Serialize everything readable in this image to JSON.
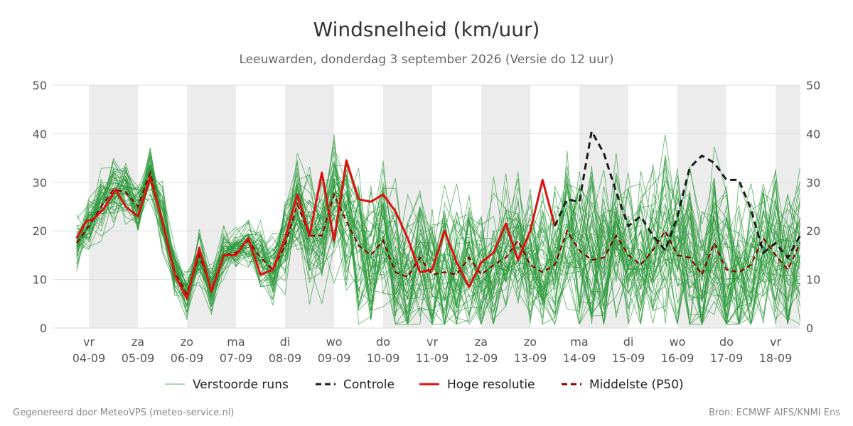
{
  "title": "Windsnelheid (km/uur)",
  "subtitle": "Leeuwarden, donderdag  3 september 2026 (Versie do 12 uur)",
  "footer_left": "Gegenereerd door MeteoVPS (meteo-service.nl)",
  "footer_right": "Bron: ECMWF AIFS/KNMI Ens",
  "colors": {
    "ensemble": "#2e9a3c",
    "controle": "#1a1a1a",
    "hoge_resolutie": "#e01010",
    "p50": "#8b0000",
    "shade": "#ececec",
    "grid": "#dddddd"
  },
  "legend": [
    {
      "key": "ensemble",
      "label": "Verstoorde runs",
      "style": "thin"
    },
    {
      "key": "controle",
      "label": "Controle",
      "style": "dashed"
    },
    {
      "key": "hoge_resolutie",
      "label": "Hoge resolutie",
      "style": "solid"
    },
    {
      "key": "p50",
      "label": "Middelste (P50)",
      "style": "dashed"
    }
  ],
  "chart_data": {
    "type": "line",
    "title": "Windsnelheid (km/uur)",
    "ylim": [
      0,
      50
    ],
    "yticks": [
      0,
      10,
      20,
      30,
      40,
      50
    ],
    "xlim": [
      -0.25,
      14.5
    ],
    "grid": "horizontal",
    "legend_position": "bottom",
    "day_labels": [
      {
        "dow": "vr",
        "date": "04-09"
      },
      {
        "dow": "za",
        "date": "05-09"
      },
      {
        "dow": "zo",
        "date": "06-09"
      },
      {
        "dow": "ma",
        "date": "07-09"
      },
      {
        "dow": "di",
        "date": "08-09"
      },
      {
        "dow": "wo",
        "date": "09-09"
      },
      {
        "dow": "do",
        "date": "10-09"
      },
      {
        "dow": "vr",
        "date": "11-09"
      },
      {
        "dow": "za",
        "date": "12-09"
      },
      {
        "dow": "zo",
        "date": "13-09"
      },
      {
        "dow": "ma",
        "date": "14-09"
      },
      {
        "dow": "di",
        "date": "15-09"
      },
      {
        "dow": "wo",
        "date": "16-09"
      },
      {
        "dow": "do",
        "date": "17-09"
      },
      {
        "dow": "vr",
        "date": "18-09"
      }
    ],
    "shaded_days": [
      0,
      2,
      4,
      6,
      8,
      10,
      12,
      14
    ],
    "hoge_resolutie": {
      "x": [
        -0.25,
        -0.05,
        0.1,
        0.3,
        0.55,
        0.75,
        1.0,
        1.25,
        1.5,
        1.75,
        2.0,
        2.25,
        2.5,
        2.75,
        3.0,
        3.25,
        3.5,
        3.75,
        4.0,
        4.25,
        4.5,
        4.75,
        5.0,
        5.25,
        5.5,
        5.75,
        6.0,
        6.25,
        6.5,
        6.75,
        7.0,
        7.25,
        7.5,
        7.75,
        8.0,
        8.25,
        8.5,
        8.75,
        9.0,
        9.25,
        9.5
      ],
      "y": [
        18.5,
        22,
        22.5,
        24.5,
        28.5,
        25,
        23,
        31,
        22,
        11,
        6,
        16.5,
        7.5,
        15,
        15,
        18.5,
        11,
        12,
        18.5,
        27.5,
        19,
        32,
        18,
        34.5,
        26.5,
        26,
        27.5,
        24,
        18.5,
        11.5,
        12,
        20,
        13.5,
        8.5,
        13.5,
        15.5,
        21.5,
        14,
        20,
        30.5,
        21
      ]
    },
    "controle": {
      "x": [
        9.5,
        9.75,
        10.0,
        10.25,
        10.5,
        10.75,
        11.0,
        11.25,
        11.5,
        11.75,
        12.0,
        12.25,
        12.5,
        12.75,
        13.0,
        13.25,
        13.5,
        13.75,
        14.0,
        14.25,
        14.5
      ],
      "y": [
        21,
        26.5,
        26,
        40.5,
        36,
        28,
        21,
        23,
        19,
        16,
        23,
        33,
        35.5,
        34,
        30.5,
        30.5,
        24.5,
        15.5,
        17.5,
        14.5,
        19
      ]
    },
    "p50": {
      "x": [
        -0.25,
        0.0,
        0.25,
        0.5,
        0.75,
        1.0,
        1.25,
        1.5,
        1.75,
        2.0,
        2.25,
        2.5,
        2.75,
        3.0,
        3.25,
        3.5,
        3.75,
        4.0,
        4.25,
        4.5,
        4.75,
        5.0,
        5.25,
        5.5,
        5.75,
        6.0,
        6.25,
        6.5,
        6.75,
        7.0,
        7.25,
        7.5,
        7.75,
        8.0,
        8.25,
        8.5,
        8.75,
        9.0,
        9.25,
        9.5,
        9.75,
        10.0,
        10.25,
        10.5,
        10.75,
        11.0,
        11.25,
        11.5,
        11.75,
        12.0,
        12.25,
        12.5,
        12.75,
        13.0,
        13.25,
        13.5,
        13.75,
        14.0,
        14.25,
        14.5
      ],
      "y": [
        17.5,
        21,
        25,
        28.5,
        28,
        25,
        32,
        22,
        11.5,
        7,
        15,
        8,
        15,
        15.5,
        18,
        14.5,
        12,
        17,
        25.5,
        19,
        19,
        27.5,
        22,
        17,
        15,
        18,
        11.5,
        10.5,
        14.5,
        11,
        11.5,
        11,
        14.5,
        11,
        13,
        14.5,
        18,
        13,
        11.5,
        13,
        20,
        16,
        14,
        14.5,
        19,
        15,
        13,
        16,
        20,
        15,
        14.5,
        11,
        17.5,
        12,
        11.5,
        13,
        18.5,
        15,
        12,
        17.5
      ]
    },
    "ensemble": {
      "n_members": 50,
      "x_step": 0.25,
      "x_start": -0.25,
      "median": [
        17.5,
        21,
        25,
        28.5,
        28,
        25,
        32,
        22,
        11.5,
        7,
        15,
        8,
        15,
        15.5,
        18,
        14.5,
        12,
        17,
        25.5,
        19,
        19,
        27.5,
        22,
        17,
        15,
        18,
        11.5,
        10.5,
        14.5,
        11,
        11.5,
        11,
        14.5,
        11,
        13,
        14.5,
        18,
        13,
        11.5,
        13,
        20,
        16,
        14,
        14.5,
        19,
        15,
        13,
        16,
        20,
        15,
        14.5,
        11,
        17.5,
        12,
        11.5,
        13,
        18.5,
        15,
        12,
        17.5
      ],
      "spread": [
        3,
        3,
        4,
        4,
        4,
        4,
        3,
        4,
        3,
        3,
        3,
        3,
        3,
        3,
        3,
        4,
        4,
        5,
        6,
        7,
        8,
        8,
        8,
        9,
        9,
        9,
        9,
        9,
        9,
        9,
        9,
        9,
        9,
        9,
        9,
        9,
        9,
        9,
        9,
        9,
        9,
        10,
        10,
        10,
        10,
        10,
        10,
        10,
        10,
        10,
        10,
        10,
        10,
        10,
        10,
        10,
        10,
        10,
        10,
        10
      ]
    }
  }
}
